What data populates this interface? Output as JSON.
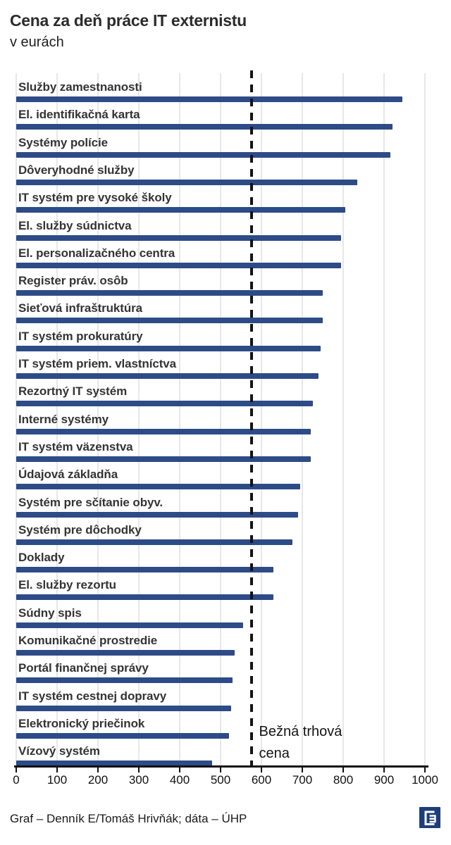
{
  "header": {
    "title": "Cena za deň práce IT externistu",
    "subtitle": "v eurách"
  },
  "chart_data": {
    "type": "bar",
    "orientation": "horizontal",
    "title": "Cena za deň práce IT externistu",
    "subtitle": "v eurách",
    "xlabel": "",
    "ylabel": "",
    "xlim": [
      0,
      1000
    ],
    "xticks": [
      0,
      100,
      200,
      300,
      400,
      500,
      600,
      700,
      800,
      900,
      1000
    ],
    "grid": true,
    "categories": [
      "Služby zamestnanosti",
      "El. identifikačná karta",
      "Systémy polície",
      "Dôveryhodné služby",
      "IT systém pre vysoké školy",
      "El. služby súdnictva",
      "El. personalizačného centra",
      "Register práv. osôb",
      "Sieťová infraštruktúra",
      "IT systém prokuratúry",
      "IT systém priem. vlastníctva",
      "Rezortný IT systém",
      "Interné systémy",
      "IT systém väzenstva",
      "Údajová základňa",
      "Systém pre sčítanie obyv.",
      "Systém pre dôchodky",
      "Doklady",
      "El. služby rezortu",
      "Súdny spis",
      "Komunikačné prostredie",
      "Portál finančnej správy",
      "IT systém cestnej dopravy",
      "Elektronický priečinok",
      "Vízový systém"
    ],
    "values": [
      945,
      920,
      915,
      835,
      805,
      795,
      795,
      750,
      750,
      745,
      740,
      725,
      720,
      720,
      695,
      690,
      675,
      630,
      630,
      555,
      535,
      530,
      525,
      520,
      480
    ],
    "reference_line": {
      "value": 575,
      "style": "dashed",
      "label": "Bežná trhová cena",
      "label_lines": [
        "Bežná trhová",
        "cena"
      ]
    },
    "colors": {
      "bar": "#2d4b87",
      "reference_line": "#141414",
      "gridline": "#e7e7e7",
      "axis": "#111111"
    }
  },
  "footer": {
    "source": "Graf – Denník E/Tomáš Hrivňák; dáta – ÚHP",
    "logo": "dennik-e-logo"
  }
}
